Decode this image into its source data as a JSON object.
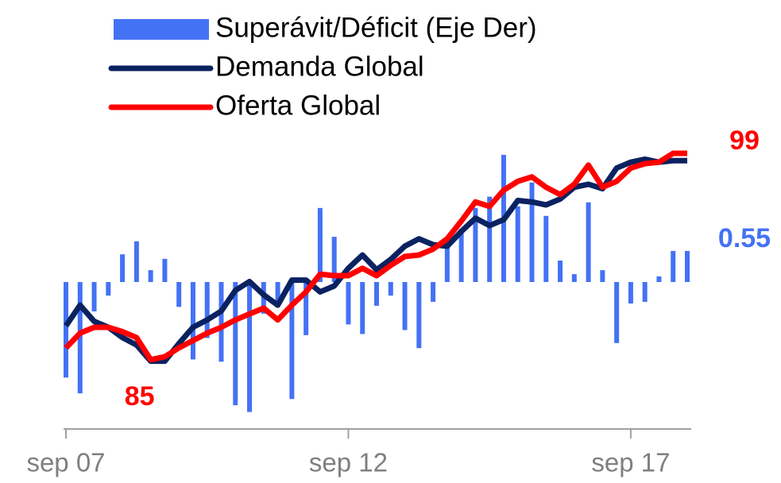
{
  "chart_data": {
    "type": "bar-line",
    "categories": [
      "sep 07",
      null,
      null,
      null,
      null,
      null,
      null,
      null,
      null,
      null,
      null,
      null,
      null,
      null,
      null,
      null,
      null,
      null,
      null,
      null,
      "sep 12",
      null,
      null,
      null,
      null,
      null,
      null,
      null,
      null,
      null,
      null,
      null,
      null,
      null,
      null,
      null,
      null,
      null,
      null,
      null,
      "sep 17",
      null,
      null,
      null,
      null
    ],
    "ylim": [
      80.3,
      99.7
    ],
    "y2lim": [
      -2.6,
      2.46
    ],
    "legend": "top-left",
    "series": [
      {
        "name": "Superávit/Déficit (Eje Der)",
        "type": "bar",
        "axis": "y2",
        "color": "#4472f5",
        "values": [
          -1.69,
          -1.97,
          -0.52,
          -0.24,
          0.49,
          0.72,
          0.21,
          0.41,
          -0.44,
          -1.37,
          -0.99,
          -1.41,
          -2.18,
          -2.3,
          -0.56,
          -0.35,
          -2.07,
          -0.94,
          1.31,
          0.8,
          -0.75,
          -0.92,
          -0.42,
          -0.24,
          -0.85,
          -1.17,
          -0.35,
          0.61,
          0.94,
          1.31,
          1.51,
          2.25,
          1.34,
          1.76,
          1.17,
          0.38,
          0.14,
          1.41,
          0.21,
          -1.08,
          -0.38,
          -0.35,
          0.1,
          0.55,
          0.55
        ],
        "value_labels": [
          null,
          null,
          null,
          null,
          null,
          null,
          null,
          null,
          null,
          null,
          null,
          null,
          null,
          null,
          null,
          null,
          null,
          null,
          null,
          null,
          null,
          null,
          null,
          null,
          null,
          null,
          null,
          null,
          null,
          null,
          null,
          null,
          null,
          null,
          null,
          null,
          null,
          null,
          null,
          null,
          null,
          null,
          null,
          null,
          "0.55"
        ]
      },
      {
        "name": "Demanda Global",
        "type": "line",
        "color": "#0a2260",
        "values": [
          87.3,
          88.7,
          87.6,
          87.2,
          86.5,
          86.0,
          84.9,
          84.9,
          86.1,
          87.2,
          87.7,
          88.3,
          89.7,
          90.3,
          89.4,
          88.7,
          90.4,
          90.4,
          89.6,
          90.0,
          91.2,
          92.1,
          91.1,
          91.8,
          92.7,
          93.2,
          92.8,
          92.7,
          93.7,
          94.6,
          94.1,
          94.5,
          95.8,
          95.7,
          95.5,
          95.9,
          96.7,
          96.9,
          96.6,
          98.0,
          98.4,
          98.6,
          98.4,
          98.5,
          98.5
        ]
      },
      {
        "name": "Oferta Global",
        "type": "line",
        "color": "#ff0000",
        "values": [
          85.8,
          86.8,
          87.2,
          87.2,
          86.9,
          86.5,
          85.0,
          85.2,
          85.8,
          86.3,
          86.8,
          87.2,
          87.7,
          88.1,
          88.5,
          87.7,
          88.7,
          89.6,
          90.8,
          90.7,
          90.7,
          91.2,
          90.7,
          91.4,
          92.0,
          92.1,
          92.5,
          93.2,
          94.4,
          95.7,
          95.4,
          96.5,
          97.1,
          97.4,
          96.7,
          96.2,
          96.9,
          98.2,
          96.7,
          97.1,
          98.0,
          98.3,
          98.4,
          99.0,
          99.0
        ],
        "value_labels": [
          null,
          null,
          null,
          null,
          null,
          null,
          "85",
          null,
          null,
          null,
          null,
          null,
          null,
          null,
          null,
          null,
          null,
          null,
          null,
          null,
          null,
          null,
          null,
          null,
          null,
          null,
          null,
          null,
          null,
          null,
          null,
          null,
          null,
          null,
          null,
          null,
          null,
          null,
          null,
          null,
          null,
          null,
          null,
          null,
          "99"
        ]
      }
    ]
  }
}
